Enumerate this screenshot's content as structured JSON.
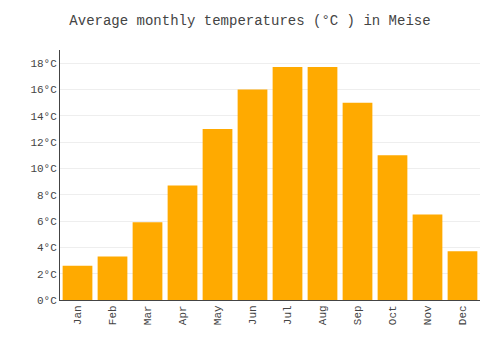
{
  "chart_data": {
    "type": "bar",
    "title": "Average monthly temperatures (°C ) in Meise",
    "categories": [
      "Jan",
      "Feb",
      "Mar",
      "Apr",
      "May",
      "Jun",
      "Jul",
      "Aug",
      "Sep",
      "Oct",
      "Nov",
      "Dec"
    ],
    "values": [
      2.6,
      3.3,
      5.9,
      8.7,
      13.0,
      16.0,
      17.7,
      17.7,
      15.0,
      11.0,
      6.5,
      3.7
    ],
    "color": "#FFAA00",
    "ylim": [
      0,
      19
    ],
    "yticks": [
      {
        "value": 0,
        "label": "0°C"
      },
      {
        "value": 2,
        "label": "2°C"
      },
      {
        "value": 4,
        "label": "4°C"
      },
      {
        "value": 6,
        "label": "6°C"
      },
      {
        "value": 8,
        "label": "8°C"
      },
      {
        "value": 10,
        "label": "10°C"
      },
      {
        "value": 12,
        "label": "12°C"
      },
      {
        "value": 14,
        "label": "14°C"
      },
      {
        "value": 16,
        "label": "16°C"
      },
      {
        "value": 18,
        "label": "18°C"
      }
    ],
    "grid": true
  }
}
